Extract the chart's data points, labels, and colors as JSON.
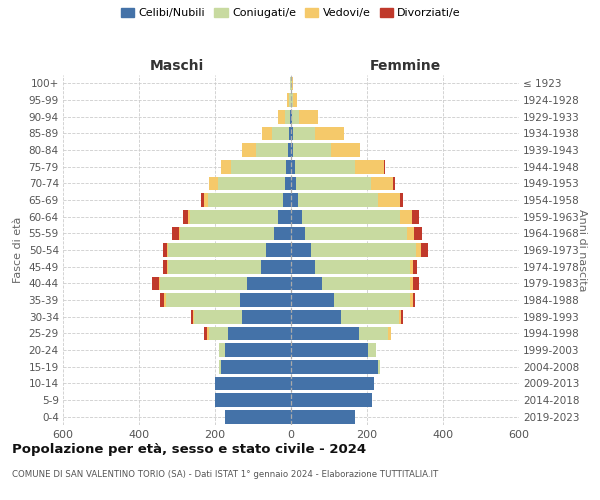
{
  "age_groups": [
    "0-4",
    "5-9",
    "10-14",
    "15-19",
    "20-24",
    "25-29",
    "30-34",
    "35-39",
    "40-44",
    "45-49",
    "50-54",
    "55-59",
    "60-64",
    "65-69",
    "70-74",
    "75-79",
    "80-84",
    "85-89",
    "90-94",
    "95-99",
    "100+"
  ],
  "birth_years": [
    "2019-2023",
    "2014-2018",
    "2009-2013",
    "2004-2008",
    "1999-2003",
    "1994-1998",
    "1989-1993",
    "1984-1988",
    "1979-1983",
    "1974-1978",
    "1969-1973",
    "1964-1968",
    "1959-1963",
    "1954-1958",
    "1949-1953",
    "1944-1948",
    "1939-1943",
    "1934-1938",
    "1929-1933",
    "1924-1928",
    "≤ 1923"
  ],
  "male_celibi": [
    175,
    200,
    200,
    185,
    175,
    165,
    130,
    135,
    115,
    80,
    65,
    45,
    35,
    20,
    15,
    12,
    7,
    4,
    2,
    1,
    0
  ],
  "male_coniugati": [
    0,
    0,
    0,
    5,
    15,
    52,
    125,
    195,
    230,
    243,
    258,
    248,
    230,
    198,
    178,
    145,
    85,
    45,
    15,
    5,
    2
  ],
  "male_vedovi": [
    0,
    0,
    0,
    0,
    0,
    5,
    3,
    3,
    3,
    3,
    3,
    3,
    6,
    12,
    22,
    28,
    38,
    28,
    18,
    5,
    0
  ],
  "male_divorziati": [
    0,
    0,
    0,
    0,
    0,
    6,
    6,
    12,
    18,
    12,
    12,
    16,
    12,
    6,
    0,
    0,
    0,
    0,
    0,
    0,
    0
  ],
  "female_nubili": [
    168,
    212,
    218,
    228,
    202,
    178,
    132,
    112,
    82,
    62,
    52,
    38,
    28,
    18,
    12,
    10,
    6,
    4,
    2,
    1,
    0
  ],
  "female_coniugate": [
    0,
    0,
    0,
    6,
    22,
    78,
    152,
    202,
    232,
    252,
    278,
    268,
    258,
    212,
    198,
    158,
    98,
    58,
    20,
    5,
    2
  ],
  "female_vedove": [
    0,
    0,
    0,
    0,
    0,
    6,
    6,
    6,
    6,
    6,
    12,
    18,
    32,
    58,
    58,
    78,
    78,
    78,
    48,
    10,
    3
  ],
  "female_divorziate": [
    0,
    0,
    0,
    0,
    0,
    0,
    6,
    6,
    18,
    12,
    18,
    22,
    18,
    6,
    6,
    2,
    0,
    0,
    0,
    0,
    0
  ],
  "colors_celibi": "#4472a8",
  "colors_coniugati": "#c8daa0",
  "colors_vedovi": "#f5c96a",
  "colors_divorziati": "#c0392b",
  "title": "Popolazione per età, sesso e stato civile - 2024",
  "subtitle": "COMUNE DI SAN VALENTINO TORIO (SA) - Dati ISTAT 1° gennaio 2024 - Elaborazione TUTTITALIA.IT",
  "label_maschi": "Maschi",
  "label_femmine": "Femmine",
  "ylabel_left": "Fasce di età",
  "ylabel_right": "Anni di nascita",
  "xlim": 600,
  "legend_labels": [
    "Celibi/Nubili",
    "Coniugati/e",
    "Vedovi/e",
    "Divorziati/e"
  ],
  "bg_color": "#ffffff",
  "grid_color": "#cccccc"
}
